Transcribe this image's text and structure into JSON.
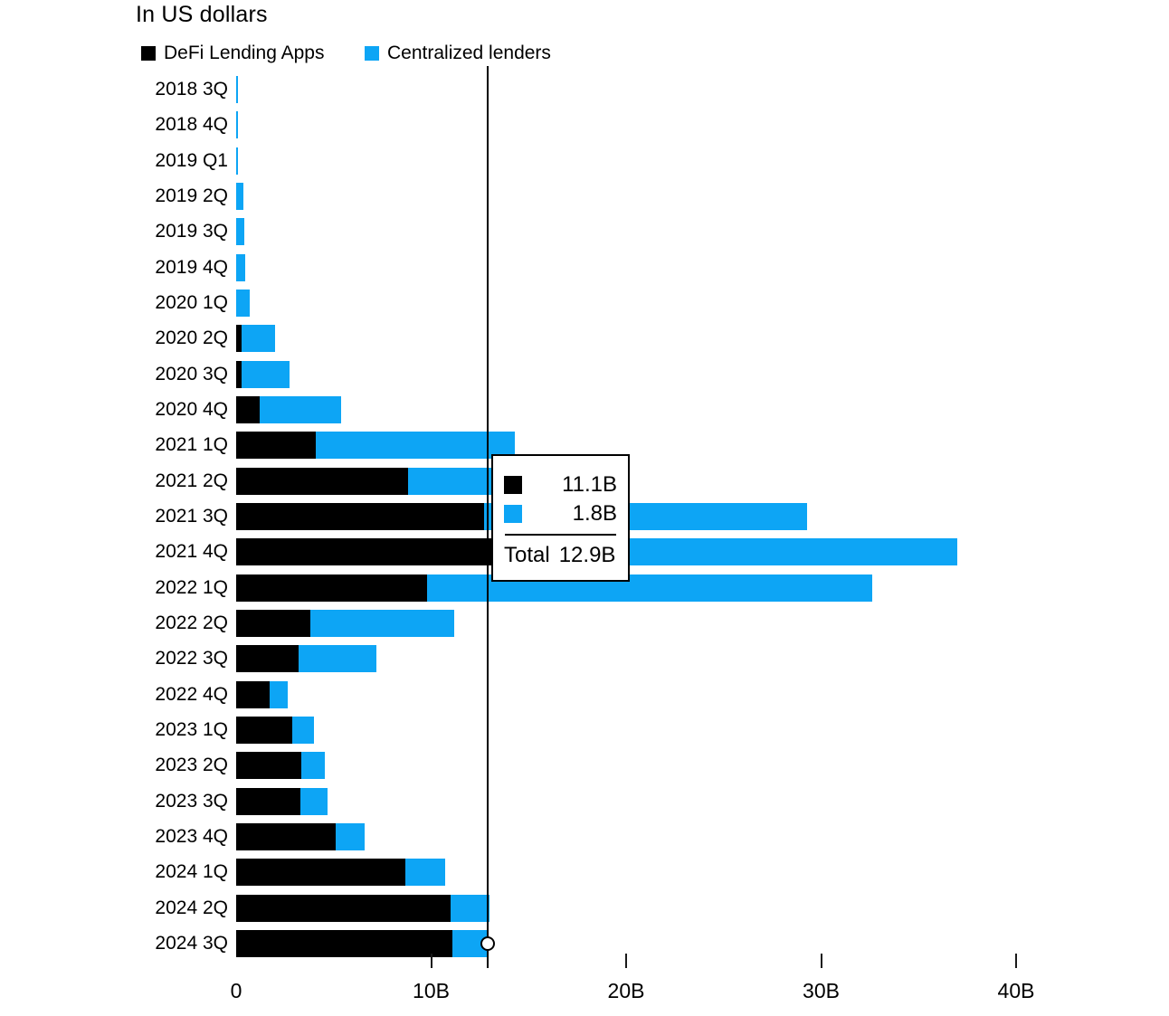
{
  "title": "In US dollars",
  "legend": [
    {
      "label": "DeFi Lending Apps",
      "color": "#000000"
    },
    {
      "label": "Centralized lenders",
      "color": "#0da5f5"
    }
  ],
  "chart_data": {
    "type": "bar",
    "orientation": "horizontal",
    "stacked": true,
    "title": "In US dollars",
    "unit": "billions of US dollars",
    "categories": [
      "2018 3Q",
      "2018 4Q",
      "2019 Q1",
      "2019 2Q",
      "2019 3Q",
      "2019 4Q",
      "2020 1Q",
      "2020 2Q",
      "2020 3Q",
      "2020 4Q",
      "2021 1Q",
      "2021 2Q",
      "2021 3Q",
      "2021 4Q",
      "2022 1Q",
      "2022 2Q",
      "2022 3Q",
      "2022 4Q",
      "2023 1Q",
      "2023 2Q",
      "2023 3Q",
      "2023 4Q",
      "2024 1Q",
      "2024 2Q",
      "2024 3Q"
    ],
    "series": [
      {
        "name": "DeFi Lending Apps",
        "color": "#000000",
        "values": [
          0,
          0,
          0,
          0,
          0,
          0,
          0,
          0.3,
          0.3,
          1.2,
          4.1,
          8.8,
          12.7,
          16.5,
          9.8,
          3.8,
          3.2,
          1.7,
          2.9,
          3.35,
          3.3,
          5.1,
          8.7,
          11.0,
          11.1
        ]
      },
      {
        "name": "Centralized lenders",
        "color": "#0da5f5",
        "values": [
          0.1,
          0.1,
          0.1,
          0.35,
          0.4,
          0.45,
          0.7,
          1.7,
          2.45,
          4.2,
          10.2,
          8.2,
          16.6,
          20.5,
          22.8,
          7.4,
          4.0,
          0.95,
          1.1,
          1.2,
          1.4,
          1.5,
          2.0,
          2.0,
          1.8
        ]
      }
    ],
    "x_axis": {
      "ticks": [
        {
          "label": "0",
          "value": 0,
          "tick": false
        },
        {
          "label": "10B",
          "value": 10,
          "tick": true
        },
        {
          "label": "20B",
          "value": 20,
          "tick": true
        },
        {
          "label": "30B",
          "value": 30,
          "tick": true
        },
        {
          "label": "40B",
          "value": 40,
          "tick": true
        }
      ],
      "range": [
        0,
        40
      ],
      "grid": false
    },
    "reference_line": {
      "value": 12.9
    },
    "highlight": {
      "category": "2024 3Q",
      "marker_value": 12.9
    }
  },
  "tooltip": {
    "rows": [
      {
        "series": "DeFi Lending Apps",
        "color": "#000000",
        "value": "11.1B"
      },
      {
        "series": "Centralized lenders",
        "color": "#0da5f5",
        "value": "1.8B"
      }
    ],
    "total_label": "Total",
    "total_value": "12.9B"
  }
}
